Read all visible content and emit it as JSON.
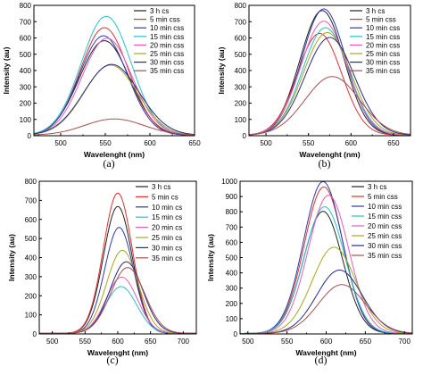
{
  "chart_data": [
    {
      "type": "line",
      "panel_label": "(a)",
      "xlabel": "Wavelenght (nm)",
      "ylabel": "Intensity (au)",
      "xlim": [
        470,
        650
      ],
      "ylim": [
        0,
        800
      ],
      "xticks": [
        500,
        550,
        600,
        650
      ],
      "yticks": [
        0,
        100,
        200,
        300,
        400,
        500,
        600,
        700,
        800
      ],
      "legend_position": "top-right",
      "series": [
        {
          "name": "3 h cs",
          "color": "#222222",
          "peak_x": 549,
          "peak_y": 580,
          "width": 28
        },
        {
          "name": "5 min css",
          "color": "#e03030",
          "peak_x": 549,
          "peak_y": 660,
          "width": 27
        },
        {
          "name": "10 min css",
          "color": "#2d3aa8",
          "peak_x": 548,
          "peak_y": 610,
          "width": 27
        },
        {
          "name": "15 min css",
          "color": "#28c0c8",
          "peak_x": 551,
          "peak_y": 730,
          "width": 28
        },
        {
          "name": "20 min css",
          "color": "#e060c0",
          "peak_x": 552,
          "peak_y": 595,
          "width": 28
        },
        {
          "name": "25 min css",
          "color": "#a8a820",
          "peak_x": 556,
          "peak_y": 430,
          "width": 30
        },
        {
          "name": "30 min css",
          "color": "#2a2a8a",
          "peak_x": 557,
          "peak_y": 435,
          "width": 31
        },
        {
          "name": "35 min css",
          "color": "#a85050",
          "peak_x": 560,
          "peak_y": 100,
          "width": 33
        }
      ]
    },
    {
      "type": "line",
      "panel_label": "(b)",
      "xlabel": "Wavelenght (nm)",
      "ylabel": "Intensity (au)",
      "xlim": [
        480,
        670
      ],
      "ylim": [
        0,
        800
      ],
      "xticks": [
        500,
        550,
        600,
        650
      ],
      "yticks": [
        0,
        100,
        200,
        300,
        400,
        500,
        600,
        700,
        800
      ],
      "legend_position": "top-right",
      "series": [
        {
          "name": "3 h cs",
          "color": "#222222",
          "peak_x": 566,
          "peak_y": 765,
          "width": 26
        },
        {
          "name": "5 min css",
          "color": "#e03030",
          "peak_x": 563,
          "peak_y": 625,
          "width": 26
        },
        {
          "name": "10 min css",
          "color": "#2d3aa8",
          "peak_x": 568,
          "peak_y": 775,
          "width": 26
        },
        {
          "name": "15 min css",
          "color": "#28c0c8",
          "peak_x": 570,
          "peak_y": 660,
          "width": 27
        },
        {
          "name": "20 min css",
          "color": "#e060c0",
          "peak_x": 568,
          "peak_y": 700,
          "width": 27
        },
        {
          "name": "25 min css",
          "color": "#a8a820",
          "peak_x": 572,
          "peak_y": 630,
          "width": 28
        },
        {
          "name": "30 min css",
          "color": "#2a2a8a",
          "peak_x": 575,
          "peak_y": 600,
          "width": 29
        },
        {
          "name": "35 min css",
          "color": "#a85050",
          "peak_x": 578,
          "peak_y": 360,
          "width": 32
        }
      ]
    },
    {
      "type": "line",
      "panel_label": "(c)",
      "xlabel": "Wavelenght (nm)",
      "ylabel": "Intensity (au)",
      "xlim": [
        480,
        720
      ],
      "ylim": [
        0,
        800
      ],
      "xticks": [
        500,
        550,
        600,
        650,
        700
      ],
      "yticks": [
        0,
        100,
        200,
        300,
        400,
        500,
        600,
        700,
        800
      ],
      "legend_position": "top-right",
      "series": [
        {
          "name": "3 h cs",
          "color": "#222222",
          "peak_x": 600,
          "peak_y": 665,
          "width": 22
        },
        {
          "name": "5 min cs",
          "color": "#e03030",
          "peak_x": 600,
          "peak_y": 735,
          "width": 22
        },
        {
          "name": "10 min cs",
          "color": "#2d3aa8",
          "peak_x": 602,
          "peak_y": 555,
          "width": 22
        },
        {
          "name": "15 min cs",
          "color": "#28c0c8",
          "peak_x": 605,
          "peak_y": 245,
          "width": 24
        },
        {
          "name": "20 min cs",
          "color": "#e060c0",
          "peak_x": 606,
          "peak_y": 295,
          "width": 24
        },
        {
          "name": "25 min cs",
          "color": "#a8a820",
          "peak_x": 607,
          "peak_y": 435,
          "width": 24
        },
        {
          "name": "30 min cs",
          "color": "#2a2a8a",
          "peak_x": 613,
          "peak_y": 375,
          "width": 25
        },
        {
          "name": "35 min cs",
          "color": "#a85050",
          "peak_x": 615,
          "peak_y": 345,
          "width": 26
        }
      ]
    },
    {
      "type": "line",
      "panel_label": "(d)",
      "xlabel": "Wavelenght (nm)",
      "ylabel": "Intensity (au)",
      "xlim": [
        490,
        710
      ],
      "ylim": [
        0,
        1000
      ],
      "xticks": [
        500,
        550,
        600,
        650,
        700
      ],
      "yticks": [
        0,
        100,
        200,
        300,
        400,
        500,
        600,
        700,
        800,
        900,
        1000
      ],
      "legend_position": "top-right",
      "series": [
        {
          "name": "3 h cs",
          "color": "#222222",
          "peak_x": 596,
          "peak_y": 800,
          "width": 25
        },
        {
          "name": "5 min css",
          "color": "#e03030",
          "peak_x": 597,
          "peak_y": 960,
          "width": 25
        },
        {
          "name": "10 min css",
          "color": "#2d3aa8",
          "peak_x": 596,
          "peak_y": 995,
          "width": 25
        },
        {
          "name": "15 min css",
          "color": "#28c0c8",
          "peak_x": 598,
          "peak_y": 830,
          "width": 26
        },
        {
          "name": "20 min css",
          "color": "#e060c0",
          "peak_x": 603,
          "peak_y": 905,
          "width": 26
        },
        {
          "name": "25 min css",
          "color": "#a8a820",
          "peak_x": 610,
          "peak_y": 565,
          "width": 28
        },
        {
          "name": "30 min css",
          "color": "#2a2a8a",
          "peak_x": 617,
          "peak_y": 415,
          "width": 29
        },
        {
          "name": "35 min css",
          "color": "#a85050",
          "peak_x": 620,
          "peak_y": 320,
          "width": 30
        }
      ]
    }
  ]
}
